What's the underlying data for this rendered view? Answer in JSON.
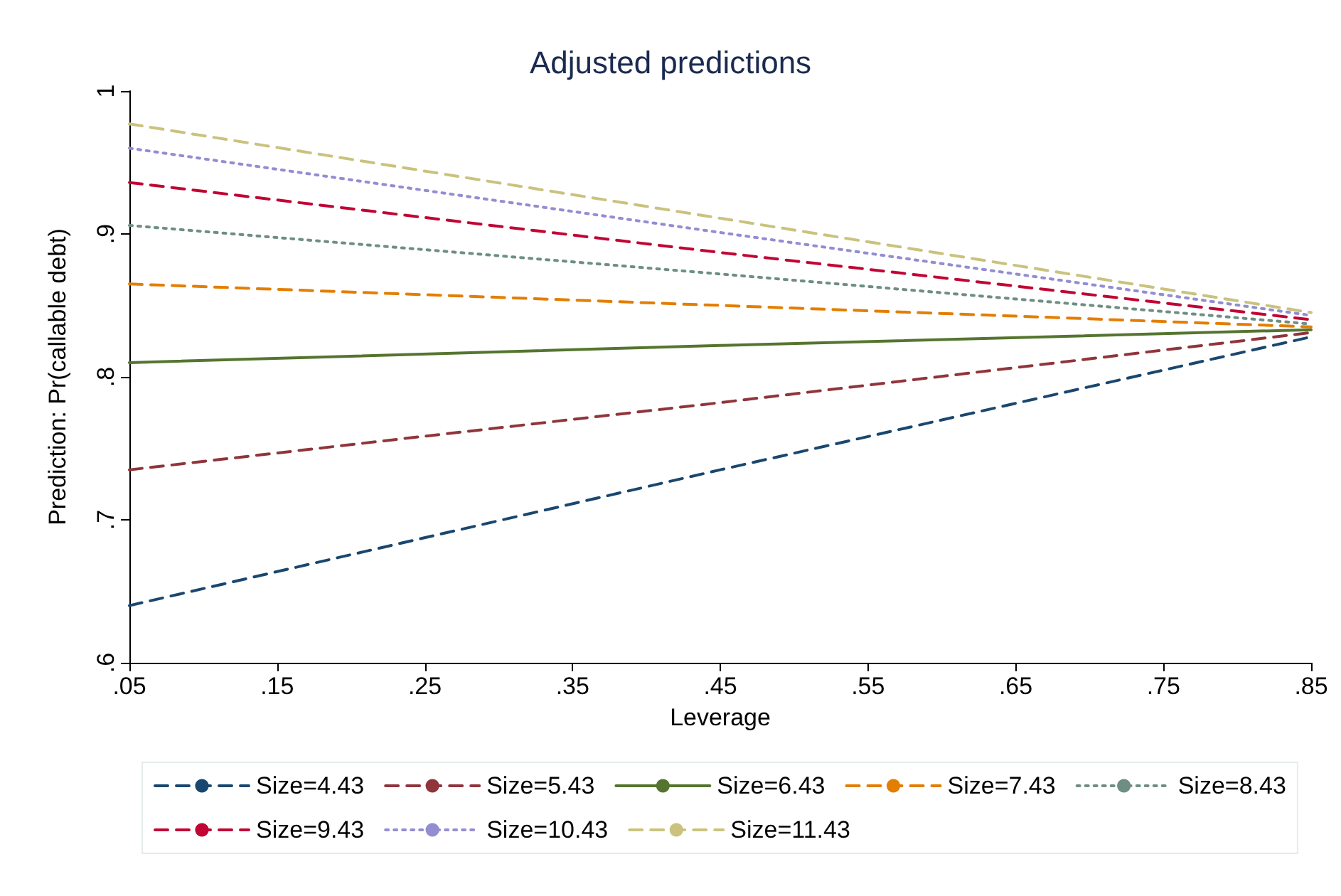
{
  "chart_data": {
    "type": "line",
    "title": "Adjusted predictions",
    "xlabel": "Leverage",
    "ylabel": "Prediction: Pr(callable debt)",
    "x": [
      0.05,
      0.45,
      0.85
    ],
    "xlim": [
      0.05,
      0.85
    ],
    "xticks": [
      {
        "value": 0.05,
        "label": ".05"
      },
      {
        "value": 0.15,
        "label": ".15"
      },
      {
        "value": 0.25,
        "label": ".25"
      },
      {
        "value": 0.35,
        "label": ".35"
      },
      {
        "value": 0.45,
        "label": ".45"
      },
      {
        "value": 0.55,
        "label": ".55"
      },
      {
        "value": 0.65,
        "label": ".65"
      },
      {
        "value": 0.75,
        "label": ".75"
      },
      {
        "value": 0.85,
        "label": ".85"
      }
    ],
    "ylim": [
      0.6,
      1
    ],
    "yticks": [
      {
        "value": 0.6,
        "label": ".6"
      },
      {
        "value": 0.7,
        "label": ".7"
      },
      {
        "value": 0.8,
        "label": ".8"
      },
      {
        "value": 0.9,
        "label": ".9"
      },
      1
    ],
    "grid": false,
    "legend": "bottom",
    "marker": "none",
    "series": [
      {
        "name": "Size=4.43",
        "color": "#1a476f",
        "line_style": "dashed",
        "values": [
          0.64,
          0.735,
          0.828
        ]
      },
      {
        "name": "Size=5.43",
        "color": "#90353b",
        "line_style": "dashed",
        "values": [
          0.735,
          0.782,
          0.831
        ]
      },
      {
        "name": "Size=6.43",
        "color": "#55752f",
        "line_style": "solid",
        "values": [
          0.81,
          0.822,
          0.833
        ]
      },
      {
        "name": "Size=7.43",
        "color": "#e37e00",
        "line_style": "dashed",
        "values": [
          0.865,
          0.85,
          0.835
        ]
      },
      {
        "name": "Size=8.43",
        "color": "#6e8e84",
        "line_style": "dotted",
        "values": [
          0.906,
          0.872,
          0.837
        ]
      },
      {
        "name": "Size=9.43",
        "color": "#c10534",
        "line_style": "dashed",
        "values": [
          0.936,
          0.887,
          0.84
        ]
      },
      {
        "name": "Size=10.43",
        "color": "#938dd2",
        "line_style": "dotted",
        "values": [
          0.96,
          0.901,
          0.843
        ]
      },
      {
        "name": "Size=11.43",
        "color": "#cac27e",
        "line_style": "dashed",
        "values": [
          0.977,
          0.911,
          0.845
        ]
      }
    ]
  }
}
